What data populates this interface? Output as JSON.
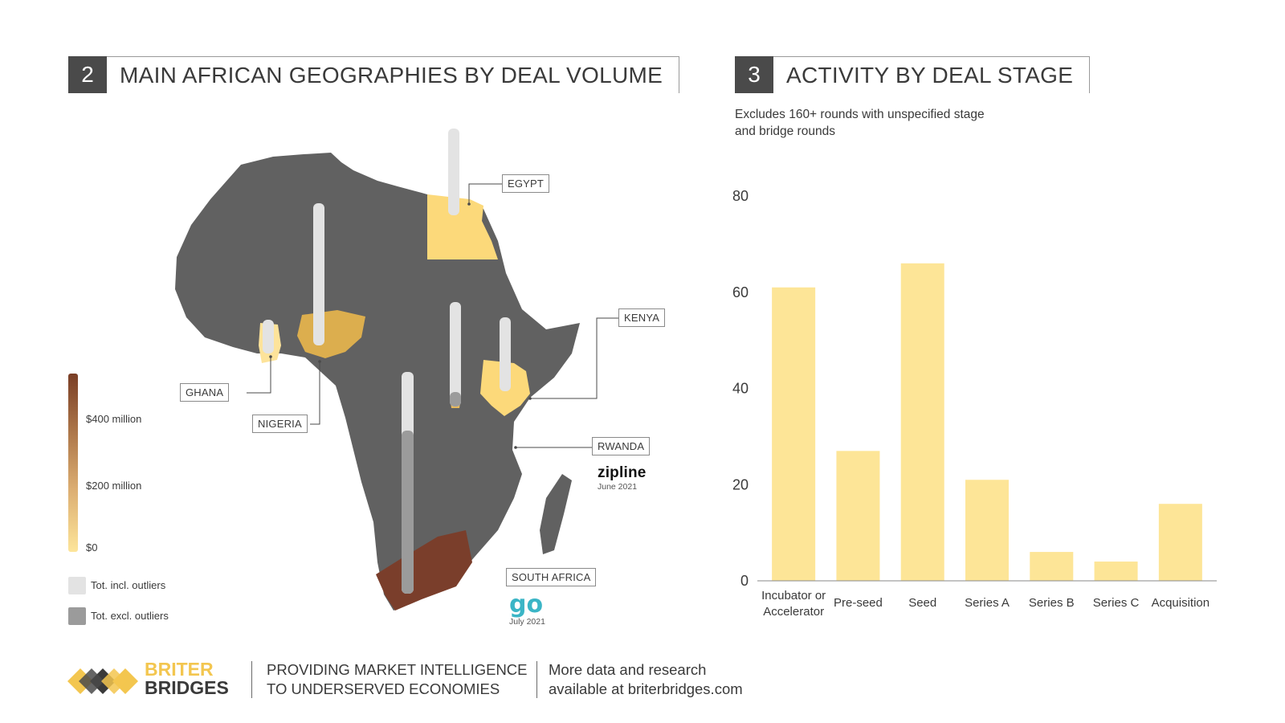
{
  "map_panel": {
    "number": "2",
    "title": "MAIN AFRICAN GEOGRAPHIES BY DEAL VOLUME",
    "legend": {
      "scale_labels": [
        "$400 million",
        "$200 million",
        "$0"
      ],
      "series": [
        {
          "label": "Tot. incl. outliers",
          "color": "#e3e3e3"
        },
        {
          "label": "Tot. excl. outliers",
          "color": "#9b9b9b"
        }
      ]
    },
    "countries": [
      {
        "name": "EGYPT",
        "fill": "#fcd97a"
      },
      {
        "name": "KENYA",
        "fill": "#fcd97a"
      },
      {
        "name": "GHANA",
        "fill": "#fde39a"
      },
      {
        "name": "NIGERIA",
        "fill": "#dcae4e"
      },
      {
        "name": "RWANDA",
        "fill": "#e6b85c"
      },
      {
        "name": "SOUTH AFRICA",
        "fill": "#7a3e2b"
      }
    ],
    "companies": [
      {
        "name": "zipline",
        "date": "June 2021"
      },
      {
        "name": "go",
        "date": "July 2021"
      }
    ],
    "colors": {
      "land": "#616161",
      "bar_incl": "#e3e3e3",
      "bar_excl": "#9b9b9b"
    }
  },
  "chart_panel": {
    "number": "3",
    "title": "ACTIVITY BY DEAL STAGE",
    "subtitle": "Excludes 160+ rounds with unspecified stage and bridge rounds"
  },
  "chart_data": {
    "type": "bar",
    "categories": [
      "Incubator or Accelerator",
      "Pre-seed",
      "Seed",
      "Series A",
      "Series B",
      "Series C",
      "Acquisition"
    ],
    "values": [
      61,
      27,
      66,
      21,
      6,
      4,
      16
    ],
    "ylim": [
      0,
      80
    ],
    "yticks": [
      0,
      20,
      40,
      60,
      80
    ],
    "bar_color": "#fde597",
    "grid": false
  },
  "footer": {
    "brand_line1": "BRITER",
    "brand_line2": "BRIDGES",
    "tagline_line1": "PROVIDING MARKET INTELLIGENCE",
    "tagline_line2": "TO UNDERSERVED ECONOMIES",
    "more_line1": "More data and research",
    "more_line2": "available at briterbridges.com"
  }
}
